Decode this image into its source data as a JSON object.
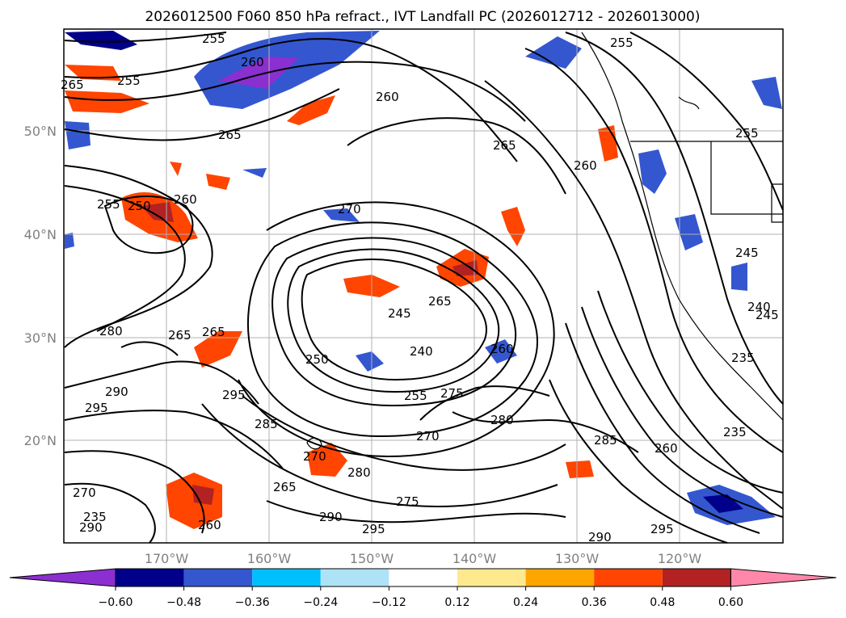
{
  "title": "2026012500 F060 850 hPa refract., IVT Landfall PC (2026012712 - 2026013000)",
  "lat_labels": [
    "50°N",
    "40°N",
    "30°N",
    "20°N"
  ],
  "lon_labels": [
    "170°W",
    "160°W",
    "150°W",
    "140°W",
    "130°W",
    "120°W"
  ],
  "colorbar": {
    "ticks": [
      "−0.60",
      "−0.48",
      "−0.36",
      "−0.24",
      "−0.12",
      "0.12",
      "0.24",
      "0.36",
      "0.48",
      "0.60"
    ],
    "colors": [
      "#8b2fd0",
      "#00008b",
      "#3457d0",
      "#00bfff",
      "#aee3f7",
      "#ffffff",
      "#ffe98f",
      "#ffa500",
      "#ff4500",
      "#b22222",
      "#ff88aa"
    ]
  },
  "contour_labels": [
    "255",
    "260",
    "265",
    "255",
    "260",
    "265",
    "255",
    "250",
    "260",
    "270",
    "265",
    "245",
    "265",
    "240",
    "250",
    "265",
    "280",
    "295",
    "290",
    "295",
    "285",
    "275",
    "255",
    "280",
    "270",
    "280",
    "265",
    "275",
    "290",
    "295",
    "270",
    "270",
    "235",
    "290",
    "260",
    "260",
    "265",
    "260",
    "255",
    "245",
    "240",
    "235",
    "285",
    "260",
    "235",
    "295",
    "290",
    "245",
    "255"
  ],
  "colors": {
    "contour": "#000000",
    "grid": "#b0b0b0",
    "frame": "#000000"
  }
}
